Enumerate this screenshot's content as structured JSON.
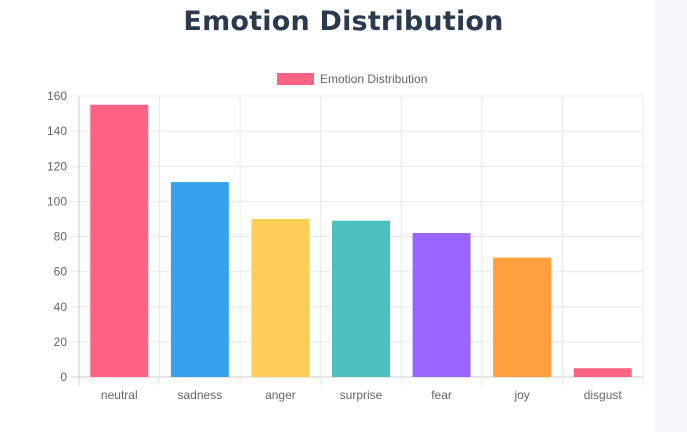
{
  "page": {
    "title": "Emotion Distribution"
  },
  "chart_data": {
    "type": "bar",
    "title": "Emotion Distribution",
    "categories": [
      "neutral",
      "sadness",
      "anger",
      "surprise",
      "fear",
      "joy",
      "disgust"
    ],
    "series": [
      {
        "name": "Emotion Distribution",
        "values": [
          155,
          111,
          90,
          89,
          82,
          68,
          5
        ]
      }
    ],
    "bar_colors": [
      "#FF6384",
      "#36A2EB",
      "#FFCE56",
      "#4BC0C0",
      "#9966FF",
      "#FF9F40",
      "#FF6384"
    ],
    "legend": {
      "label": "Emotion Distribution",
      "color": "#FF6384",
      "position": "top"
    },
    "ylim": [
      0,
      160
    ],
    "yticks": [
      0,
      20,
      40,
      60,
      80,
      100,
      120,
      140,
      160
    ],
    "grid": true,
    "xlabel": "",
    "ylabel": ""
  }
}
